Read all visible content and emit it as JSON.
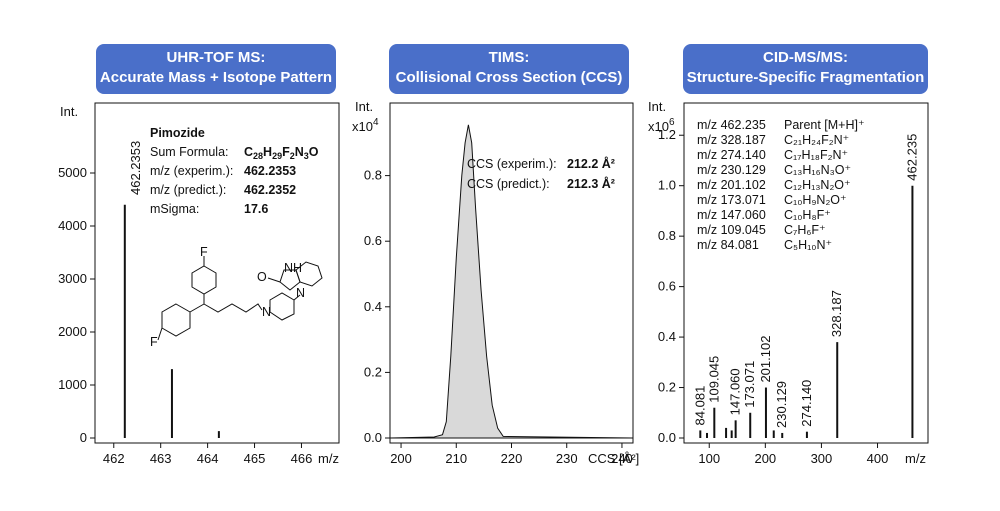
{
  "panels": [
    {
      "header": {
        "line1": "UHR-TOF MS:",
        "line2": "Accurate Mass + Isotope Pattern"
      },
      "ylabel": "Int.",
      "xlabel": "m/z",
      "info": {
        "title": "Pimozide",
        "rows": [
          {
            "label": "Sum Formula:",
            "value": "C28H29F2N3O"
          },
          {
            "label": "m/z (experim.):",
            "value": "462.2353"
          },
          {
            "label": "m/z (predict.):",
            "value": "462.2352"
          },
          {
            "label": "mSigma:",
            "value": "17.6"
          }
        ]
      },
      "peak_label": "462.2353",
      "structure_labels": [
        "F",
        "F",
        "O",
        "NH",
        "N",
        "N"
      ]
    },
    {
      "header": {
        "line1": "TIMS:",
        "line2": "Collisional Cross Section (CCS)"
      },
      "ylabel": "Int.",
      "yscale": "x10",
      "yscale_exp": "4",
      "xlabel": "CCS [Å²]",
      "info": {
        "rows": [
          {
            "label": "CCS (experim.):",
            "value": "212.2 Å²"
          },
          {
            "label": "CCS (predict.):",
            "value": "212.3 Å²"
          }
        ]
      }
    },
    {
      "header": {
        "line1": "CID-MS/MS:",
        "line2": "Structure-Specific Fragmentation"
      },
      "ylabel": "Int.",
      "yscale": "x10",
      "yscale_exp": "6",
      "xlabel": "m/z",
      "fragment_table": [
        {
          "mz": "m/z 462.235",
          "formula": "Parent [M+H]⁺"
        },
        {
          "mz": "m/z 328.187",
          "formula": "C₂₁H₂₄F₂N⁺"
        },
        {
          "mz": "m/z 274.140",
          "formula": "C₁₇H₁₈F₂N⁺"
        },
        {
          "mz": "m/z 230.129",
          "formula": "C₁₃H₁₆N₃O⁺"
        },
        {
          "mz": "m/z 201.102",
          "formula": "C₁₂H₁₃N₂O⁺"
        },
        {
          "mz": "m/z 173.071",
          "formula": "C₁₀H₉N₂O⁺"
        },
        {
          "mz": "m/z 147.060",
          "formula": "C₁₀H₈F⁺"
        },
        {
          "mz": "m/z 109.045",
          "formula": "C₇H₆F⁺"
        },
        {
          "mz": "m/z 84.081",
          "formula": "C₅H₁₀N⁺"
        }
      ]
    }
  ],
  "chart_data": [
    {
      "type": "bar",
      "title": "UHR-TOF MS: Accurate Mass + Isotope Pattern",
      "xlabel": "m/z",
      "ylabel": "Int.",
      "xlim": [
        461.6,
        466.8
      ],
      "ylim": [
        0,
        6000
      ],
      "xticks": [
        462,
        463,
        464,
        465,
        466
      ],
      "yticks": [
        0,
        1000,
        2000,
        3000,
        4000,
        5000
      ],
      "x": [
        462.2353,
        463.24,
        464.24
      ],
      "values": [
        4400,
        1300,
        130
      ]
    },
    {
      "type": "area",
      "title": "TIMS: Collisional Cross Section (CCS)",
      "xlabel": "CCS [Å²]",
      "ylabel": "Int.",
      "xlim": [
        198,
        242
      ],
      "ylim": [
        0,
        1.0
      ],
      "xticks": [
        200,
        210,
        220,
        230,
        240
      ],
      "yticks": [
        0.0,
        0.2,
        0.4,
        0.6,
        0.8
      ],
      "x": [
        198,
        206,
        207.5,
        208.2,
        209,
        210,
        211,
        211.6,
        212.2,
        212.8,
        213.5,
        214.5,
        215.5,
        216.5,
        217.5,
        218.5,
        242
      ],
      "y": [
        0,
        0.003,
        0.01,
        0.05,
        0.25,
        0.55,
        0.8,
        0.9,
        0.955,
        0.9,
        0.7,
        0.45,
        0.25,
        0.1,
        0.03,
        0.005,
        0
      ],
      "fill": "#d9d9d9"
    },
    {
      "type": "bar",
      "title": "CID-MS/MS: Structure-Specific Fragmentation",
      "xlabel": "m/z",
      "ylabel": "Int.",
      "xlim": [
        55,
        490
      ],
      "ylim": [
        0,
        1.3
      ],
      "xticks": [
        100,
        200,
        300,
        400
      ],
      "yticks": [
        0.0,
        0.2,
        0.4,
        0.6,
        0.8,
        1.0,
        1.2
      ],
      "x": [
        84.081,
        96,
        109.045,
        130,
        140,
        147.06,
        173.071,
        201.102,
        215,
        230.129,
        274.14,
        328.187,
        462.235
      ],
      "values": [
        0.03,
        0.02,
        0.12,
        0.04,
        0.03,
        0.07,
        0.1,
        0.2,
        0.03,
        0.02,
        0.025,
        0.38,
        1.0
      ],
      "labels": [
        "84.081",
        "",
        "109.045",
        "",
        "",
        "147.060",
        "173.071",
        "201.102",
        "",
        "230.129",
        "274.140",
        "328.187",
        "462.235"
      ]
    }
  ]
}
